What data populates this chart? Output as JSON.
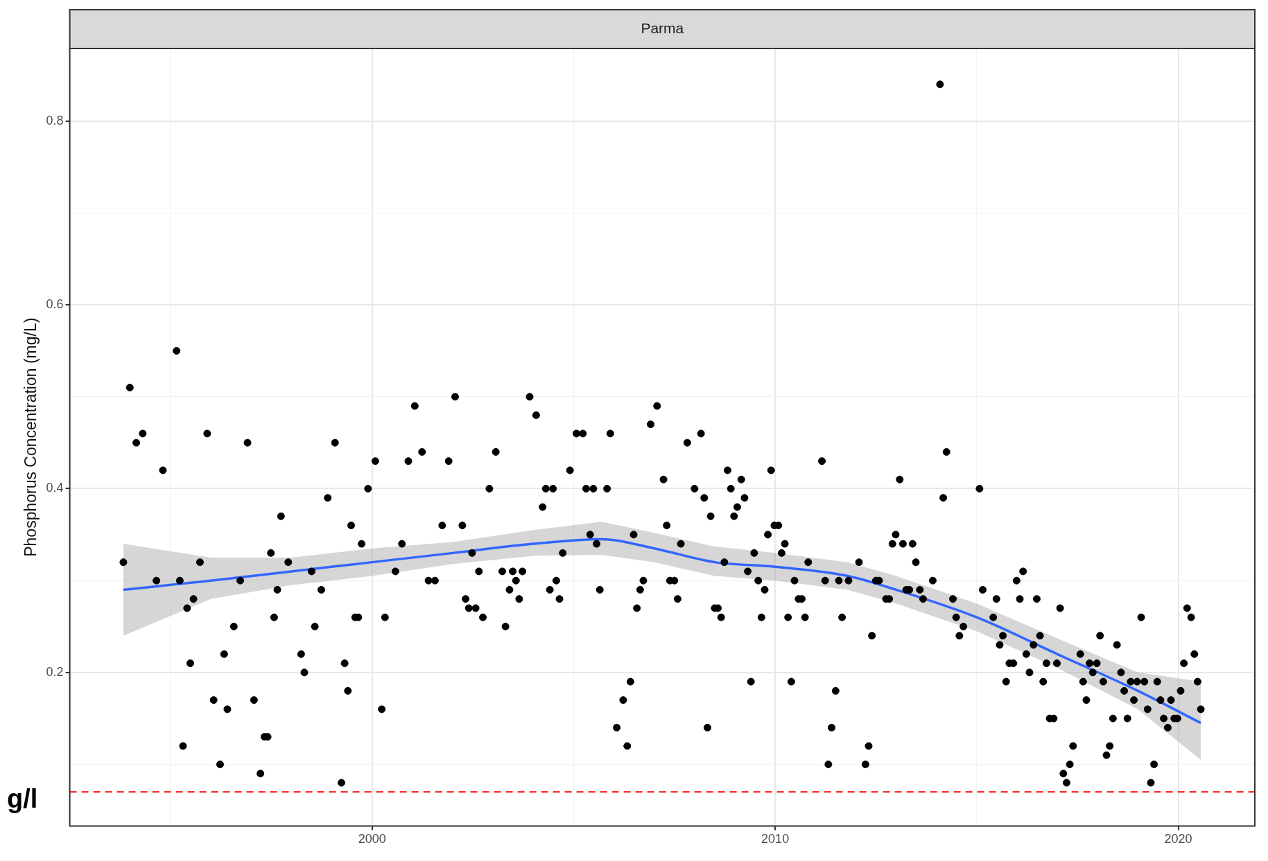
{
  "chart_data": {
    "type": "scatter",
    "title": "Parma",
    "ylabel": "Phosphorus Concentration (mg/L)",
    "xlim": [
      1992.5,
      2021.9
    ],
    "ylim": [
      0.033,
      0.879
    ],
    "xticks": [
      {
        "value": 1995,
        "label": null
      },
      2000,
      {
        "value": 2005,
        "label": null
      },
      2010,
      {
        "value": 2015,
        "label": null
      },
      2020
    ],
    "yticks": [
      {
        "value": 0.1,
        "label": null
      },
      0.2,
      {
        "value": 0.3,
        "label": null
      },
      0.4,
      {
        "value": 0.5,
        "label": null
      },
      0.6,
      {
        "value": 0.7,
        "label": null
      },
      0.8
    ],
    "grid": true,
    "ref_lines": [
      {
        "axis": "y",
        "value": 0.07,
        "label": "g/l",
        "color": "#ff0000",
        "line_style": "dashed"
      }
    ],
    "series": [
      {
        "color": "#000000",
        "marker": "circle",
        "x": [
          1993.83,
          1993.99,
          1994.15,
          1994.31,
          1994.65,
          1994.81,
          1995.15,
          1995.23,
          1995.31,
          1995.41,
          1995.49,
          1995.57,
          1995.73,
          1995.91,
          1996.07,
          1996.23,
          1996.33,
          1996.41,
          1996.57,
          1996.73,
          1996.91,
          1997.07,
          1997.23,
          1997.33,
          1997.41,
          1997.49,
          1997.57,
          1997.65,
          1997.74,
          1997.92,
          1998.24,
          1998.32,
          1998.5,
          1998.58,
          1998.74,
          1998.9,
          1999.08,
          1999.24,
          1999.32,
          1999.4,
          1999.48,
          1999.58,
          1999.66,
          1999.74,
          1999.9,
          2000.08,
          2000.24,
          2000.32,
          2000.58,
          2000.74,
          2000.9,
          2001.06,
          2001.24,
          2001.4,
          2001.56,
          2001.74,
          2001.9,
          2002.06,
          2002.24,
          2002.32,
          2002.4,
          2002.48,
          2002.57,
          2002.65,
          2002.75,
          2002.91,
          2003.07,
          2003.23,
          2003.31,
          2003.41,
          2003.49,
          2003.57,
          2003.65,
          2003.73,
          2003.91,
          2004.07,
          2004.23,
          2004.31,
          2004.41,
          2004.49,
          2004.57,
          2004.65,
          2004.73,
          2004.91,
          2005.07,
          2005.23,
          2005.31,
          2005.41,
          2005.49,
          2005.57,
          2005.65,
          2005.83,
          2005.91,
          2006.07,
          2006.23,
          2006.33,
          2006.41,
          2006.49,
          2006.57,
          2006.65,
          2006.73,
          2006.91,
          2007.07,
          2007.23,
          2007.31,
          2007.39,
          2007.5,
          2007.58,
          2007.66,
          2007.82,
          2008,
          2008.16,
          2008.24,
          2008.32,
          2008.4,
          2008.5,
          2008.58,
          2008.66,
          2008.74,
          2008.82,
          2008.9,
          2008.98,
          2009.06,
          2009.16,
          2009.24,
          2009.32,
          2009.4,
          2009.48,
          2009.58,
          2009.66,
          2009.74,
          2009.82,
          2009.9,
          2009.98,
          2010.08,
          2010.16,
          2010.24,
          2010.32,
          2010.4,
          2010.48,
          2010.58,
          2010.66,
          2010.74,
          2010.82,
          2011.16,
          2011.24,
          2011.32,
          2011.4,
          2011.5,
          2011.58,
          2011.66,
          2011.82,
          2012.08,
          2012.24,
          2012.32,
          2012.4,
          2012.5,
          2012.58,
          2012.75,
          2012.83,
          2012.91,
          2012.99,
          2013.09,
          2013.17,
          2013.25,
          2013.33,
          2013.41,
          2013.49,
          2013.59,
          2013.67,
          2013.91,
          2014.09,
          2014.17,
          2014.25,
          2014.41,
          2014.49,
          2014.57,
          2014.67,
          2015.07,
          2015.15,
          2015.41,
          2015.49,
          2015.57,
          2015.65,
          2015.73,
          2015.81,
          2015.91,
          2015.99,
          2016.07,
          2016.15,
          2016.23,
          2016.31,
          2016.41,
          2016.49,
          2016.57,
          2016.65,
          2016.73,
          2016.81,
          2016.91,
          2016.99,
          2017.07,
          2017.15,
          2017.23,
          2017.31,
          2017.39,
          2017.57,
          2017.64,
          2017.72,
          2017.8,
          2017.88,
          2017.98,
          2018.06,
          2018.14,
          2018.22,
          2018.3,
          2018.38,
          2018.48,
          2018.58,
          2018.66,
          2018.74,
          2018.82,
          2018.9,
          2018.98,
          2019.08,
          2019.16,
          2019.24,
          2019.32,
          2019.4,
          2019.48,
          2019.56,
          2019.64,
          2019.74,
          2019.82,
          2019.9,
          2019.98,
          2020.06,
          2020.14,
          2020.22,
          2020.32,
          2020.4,
          2020.48,
          2020.56
        ],
        "values": [
          0.32,
          0.51,
          0.45,
          0.46,
          0.3,
          0.42,
          0.55,
          0.3,
          0.12,
          0.27,
          0.21,
          0.28,
          0.32,
          0.46,
          0.17,
          0.1,
          0.22,
          0.16,
          0.25,
          0.3,
          0.45,
          0.17,
          0.09,
          0.13,
          0.13,
          0.33,
          0.26,
          0.29,
          0.37,
          0.32,
          0.22,
          0.2,
          0.31,
          0.25,
          0.29,
          0.39,
          0.45,
          0.08,
          0.21,
          0.18,
          0.36,
          0.26,
          0.26,
          0.34,
          0.4,
          0.43,
          0.16,
          0.26,
          0.31,
          0.34,
          0.43,
          0.49,
          0.44,
          0.3,
          0.3,
          0.36,
          0.43,
          0.5,
          0.36,
          0.28,
          0.27,
          0.33,
          0.27,
          0.31,
          0.26,
          0.4,
          0.44,
          0.31,
          0.25,
          0.29,
          0.31,
          0.3,
          0.28,
          0.31,
          0.5,
          0.48,
          0.38,
          0.4,
          0.29,
          0.4,
          0.3,
          0.28,
          0.33,
          0.42,
          0.46,
          0.46,
          0.4,
          0.35,
          0.4,
          0.34,
          0.29,
          0.4,
          0.46,
          0.14,
          0.17,
          0.12,
          0.19,
          0.35,
          0.27,
          0.29,
          0.3,
          0.47,
          0.49,
          0.41,
          0.36,
          0.3,
          0.3,
          0.28,
          0.34,
          0.45,
          0.4,
          0.46,
          0.39,
          0.14,
          0.37,
          0.27,
          0.27,
          0.26,
          0.32,
          0.42,
          0.4,
          0.37,
          0.38,
          0.41,
          0.39,
          0.31,
          0.19,
          0.33,
          0.3,
          0.26,
          0.29,
          0.35,
          0.42,
          0.36,
          0.36,
          0.33,
          0.34,
          0.26,
          0.19,
          0.3,
          0.28,
          0.28,
          0.26,
          0.32,
          0.43,
          0.3,
          0.1,
          0.14,
          0.18,
          0.3,
          0.26,
          0.3,
          0.32,
          0.1,
          0.12,
          0.24,
          0.3,
          0.3,
          0.28,
          0.28,
          0.34,
          0.35,
          0.41,
          0.34,
          0.29,
          0.29,
          0.34,
          0.32,
          0.29,
          0.28,
          0.3,
          0.84,
          0.39,
          0.44,
          0.28,
          0.26,
          0.24,
          0.25,
          0.4,
          0.29,
          0.26,
          0.28,
          0.23,
          0.24,
          0.19,
          0.21,
          0.21,
          0.3,
          0.28,
          0.31,
          0.22,
          0.2,
          0.23,
          0.28,
          0.24,
          0.19,
          0.21,
          0.15,
          0.15,
          0.21,
          0.27,
          0.09,
          0.08,
          0.1,
          0.12,
          0.22,
          0.19,
          0.17,
          0.21,
          0.2,
          0.21,
          0.24,
          0.19,
          0.11,
          0.12,
          0.15,
          0.23,
          0.2,
          0.18,
          0.15,
          0.19,
          0.17,
          0.19,
          0.26,
          0.19,
          0.16,
          0.08,
          0.1,
          0.19,
          0.17,
          0.15,
          0.14,
          0.17,
          0.15,
          0.15,
          0.18,
          0.21,
          0.27,
          0.26,
          0.22,
          0.19,
          0.16
        ]
      },
      {
        "type": "line",
        "color": "#3366ff",
        "marker": "none",
        "x": [
          1993.83,
          1996,
          1998,
          2000,
          2002,
          2004,
          2005.7,
          2007,
          2008.5,
          2010,
          2011.8,
          2013,
          2015,
          2017,
          2019,
          2020.56
        ],
        "values": [
          0.29,
          0.3,
          0.31,
          0.32,
          0.33,
          0.34,
          0.345,
          0.335,
          0.32,
          0.315,
          0.305,
          0.29,
          0.26,
          0.22,
          0.18,
          0.145
        ],
        "lower": [
          0.24,
          0.28,
          0.295,
          0.305,
          0.318,
          0.327,
          0.328,
          0.32,
          0.305,
          0.3,
          0.29,
          0.275,
          0.245,
          0.205,
          0.16,
          0.105
        ],
        "upper": [
          0.34,
          0.325,
          0.325,
          0.335,
          0.342,
          0.355,
          0.364,
          0.352,
          0.337,
          0.33,
          0.32,
          0.305,
          0.275,
          0.237,
          0.2,
          0.19
        ]
      }
    ]
  }
}
